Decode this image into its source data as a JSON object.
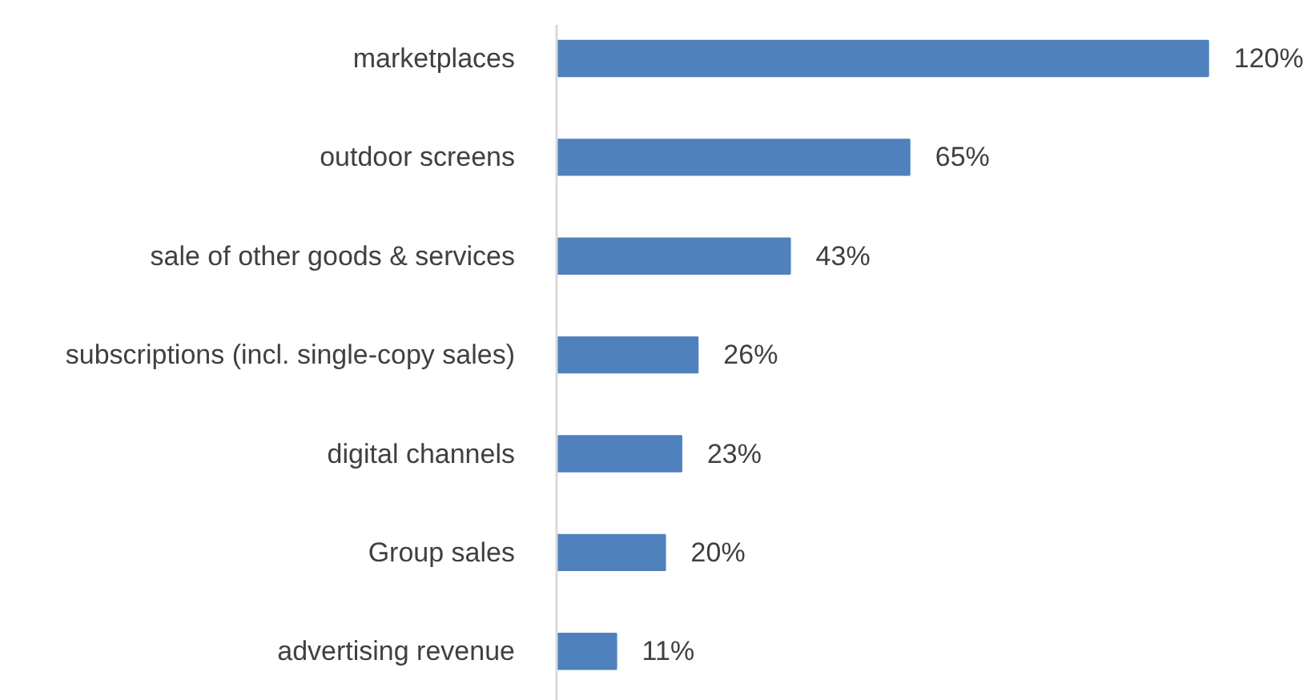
{
  "chart_data": {
    "type": "bar",
    "orientation": "horizontal",
    "categories": [
      "marketplaces",
      "outdoor screens",
      "sale of other goods & services",
      "subscriptions (incl. single-copy sales)",
      "digital channels",
      "Group sales",
      "advertising revenue"
    ],
    "values": [
      120,
      65,
      43,
      26,
      23,
      20,
      11
    ],
    "value_labels": [
      "120%",
      "65%",
      "43%",
      "26%",
      "23%",
      "20%",
      "11%"
    ],
    "color": "#4f81bd",
    "tick_labels": "y"
  }
}
